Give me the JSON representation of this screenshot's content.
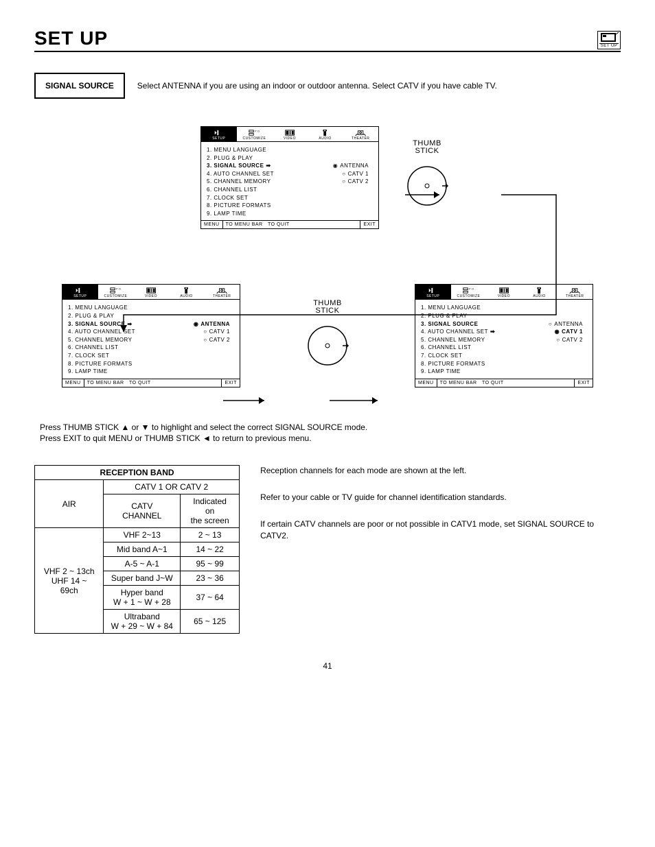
{
  "header": {
    "title": "SET UP",
    "badge_label": "SET UP"
  },
  "signal": {
    "box": "SIGNAL SOURCE",
    "desc": "Select ANTENNA if you are using an indoor or outdoor antenna.  Select CATV if you have cable TV."
  },
  "menu_tabs": [
    "SETUP",
    "CUSTOMIZE",
    "VIDEO",
    "AUDIO",
    "THEATER"
  ],
  "menu_items": [
    "1. MENU LANGUAGE",
    "2. PLUG & PLAY",
    "3. SIGNAL SOURCE",
    "4. AUTO CHANNEL SET",
    "5. CHANNEL MEMORY",
    "6. CHANNEL LIST",
    "7. CLOCK SET",
    "8. PICTURE FORMATS",
    "9. LAMP TIME"
  ],
  "options": [
    "ANTENNA",
    "CATV 1",
    "CATV 2"
  ],
  "menu_footer": {
    "a": "MENU",
    "b": "TO MENU BAR",
    "c": "TO QUIT",
    "d": "EXIT"
  },
  "box1": {
    "highlight_index": 2,
    "arrow_row": 2,
    "selected_option": 0
  },
  "box2": {
    "highlight_index": 2,
    "arrow_row": 2,
    "selected_option": 0,
    "option_bold": 0
  },
  "box3": {
    "highlight_index": 2,
    "arrow_row": 3,
    "selected_option": 1,
    "option_bold": 1
  },
  "thumb_label_a": "THUMB",
  "thumb_label_b": "STICK",
  "instructions": [
    "Press THUMB STICK ▲ or ▼ to highlight and select the correct SIGNAL SOURCE mode.",
    "Press EXIT to quit MENU or THUMB STICK ◄ to return to previous menu."
  ],
  "table": {
    "title": "RECEPTION BAND",
    "air_hdr": "AIR",
    "catv_hdr": "CATV 1 OR CATV 2",
    "sub1": "CATV CHANNEL",
    "sub2_a": "Indicated on",
    "sub2_b": "the screen",
    "air_a": "VHF 2 ~ 13ch",
    "air_b": "UHF 14 ~ 69ch",
    "rows": [
      {
        "c": "VHF 2~13",
        "s": "2 ~ 13"
      },
      {
        "c": "Mid band A~1",
        "s": "14 ~ 22"
      },
      {
        "c": "A-5 ~ A-1",
        "s": "95 ~ 99"
      },
      {
        "c": "Super band J~W",
        "s": "23 ~ 36"
      }
    ],
    "hyper_a": "Hyper band",
    "hyper_b": "W + 1 ~ W + 28",
    "hyper_s": "37 ~ 64",
    "ultra_a": "Ultraband",
    "ultra_b": "W + 29 ~ W + 84",
    "ultra_s": "65 ~ 125"
  },
  "right_paras": [
    "Reception channels for each mode are shown at the left.",
    "Refer to your cable or TV guide for channel identification standards.",
    "If certain CATV channels are poor or not possible in CATV1 mode, set SIGNAL SOURCE to CATV2."
  ],
  "page_num": "41",
  "colors": {
    "black": "#000000",
    "white": "#ffffff"
  }
}
